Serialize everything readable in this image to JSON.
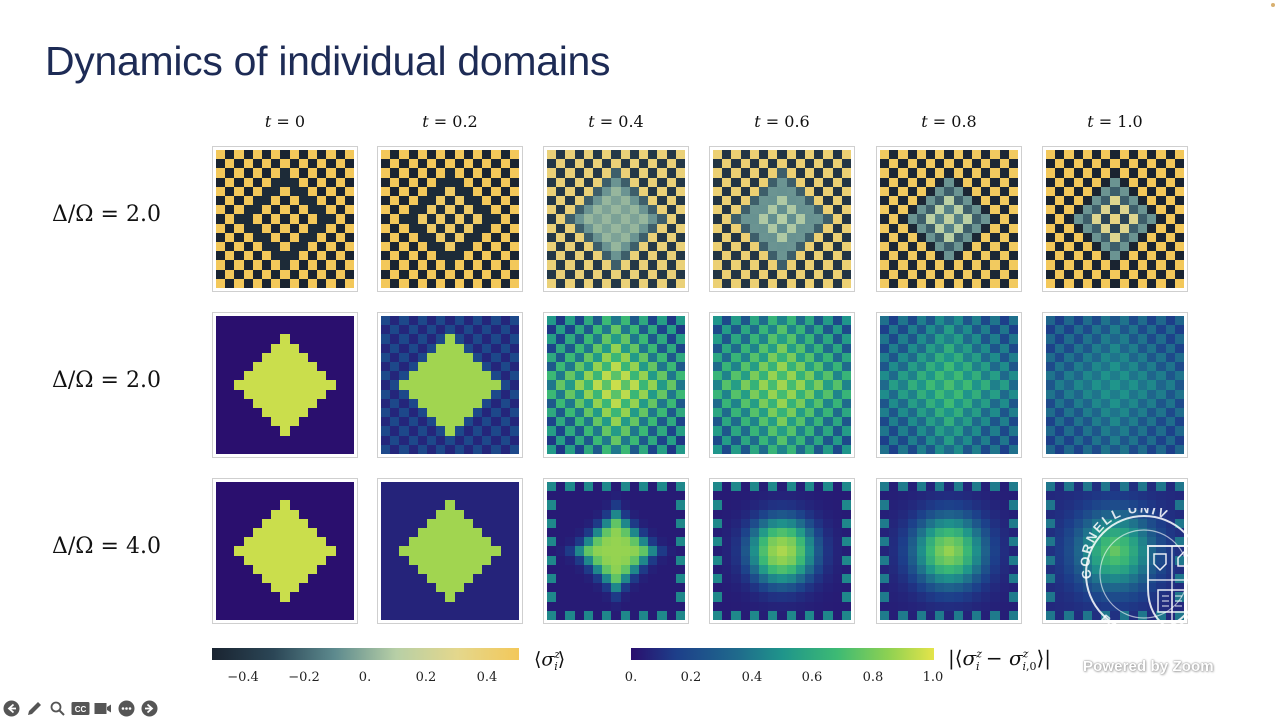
{
  "slide": {
    "title": "Dynamics of individual domains"
  },
  "columns": [
    {
      "label_var": "t",
      "label_value": "0"
    },
    {
      "label_var": "t",
      "label_value": "0.2"
    },
    {
      "label_var": "t",
      "label_value": "0.4"
    },
    {
      "label_var": "t",
      "label_value": "0.6"
    },
    {
      "label_var": "t",
      "label_value": "0.8"
    },
    {
      "label_var": "t",
      "label_value": "1.0"
    }
  ],
  "rows": [
    {
      "label": "Δ/Ω = 2.0",
      "colormap": "cividis-like",
      "quantity": "⟨σ_i^z⟩"
    },
    {
      "label": "Δ/Ω = 2.0",
      "colormap": "viridis",
      "quantity": "|⟨σ_i^z − σ_i,0^z⟩|"
    },
    {
      "label": "Δ/Ω = 4.0",
      "colormap": "viridis",
      "quantity": "|⟨σ_i^z − σ_i,0^z⟩|"
    }
  ],
  "colorbars": [
    {
      "name": "sigma-z",
      "label": "⟨σ_i^z⟩",
      "ticks": [
        "−0.4",
        "−0.2",
        "0.",
        "0.2",
        "0.4"
      ],
      "range": [
        -0.5,
        0.5
      ],
      "colors": [
        "#1a2431",
        "#2b4656",
        "#5d8a8e",
        "#b7cfa6",
        "#e4d78c",
        "#f3c85a"
      ]
    },
    {
      "name": "sigma-z-diff",
      "label": "|⟨σ_i^z − σ_i,0^z⟩|",
      "ticks": [
        "0.",
        "0.2",
        "0.4",
        "0.6",
        "0.8",
        "1.0"
      ],
      "range": [
        0,
        1
      ],
      "colors": [
        "#2a0f6e",
        "#1d3f8a",
        "#1f6a8c",
        "#1f958b",
        "#3dba74",
        "#8ed152",
        "#e4e44a"
      ]
    }
  ],
  "chart_data": {
    "type": "heatmap",
    "title": "Dynamics of individual domains",
    "grid_size": [
      15,
      15
    ],
    "x": [
      "t = 0",
      "t = 0.2",
      "t = 0.4",
      "t = 0.6",
      "t = 0.8",
      "t = 1.0"
    ],
    "rows": [
      "Δ/Ω = 2.0 (⟨σ_i^z⟩)",
      "Δ/Ω = 2.0 (|⟨σ_i^z − σ_i,0^z⟩|)",
      "Δ/Ω = 4.0 (|⟨σ_i^z − σ_i,0^z⟩|)"
    ],
    "panels": [
      [
        {
          "checker_amp": 0.5,
          "domain_radius": 5,
          "domain_flip": 1.0,
          "blur": 0.0
        },
        {
          "checker_amp": 0.5,
          "domain_radius": 5,
          "domain_flip": 0.95,
          "blur": 0.0
        },
        {
          "checker_amp": 0.38,
          "domain_radius": 5,
          "domain_flip": 0.55,
          "blur": 0.3
        },
        {
          "checker_amp": 0.4,
          "domain_radius": 5,
          "domain_flip": 0.35,
          "blur": 0.4
        },
        {
          "checker_amp": 0.48,
          "domain_radius": 4,
          "domain_flip": 0.3,
          "blur": 0.5
        },
        {
          "checker_amp": 0.5,
          "domain_radius": 4,
          "domain_flip": 0.05,
          "blur": 0.5
        }
      ],
      [
        {
          "center": 0.95,
          "radius": 5,
          "bg_checker": 0.0,
          "bg": 0.0,
          "spread": 0.0
        },
        {
          "center": 0.87,
          "radius": 5,
          "bg_checker": 0.12,
          "bg": 0.08,
          "spread": 0.0
        },
        {
          "center": 0.85,
          "radius": 5,
          "bg_checker": 0.4,
          "bg": 0.1,
          "spread": 1.0
        },
        {
          "center": 0.72,
          "radius": 5,
          "bg_checker": 0.32,
          "bg": 0.15,
          "spread": 1.6
        },
        {
          "center": 0.55,
          "radius": 4,
          "bg_checker": 0.2,
          "bg": 0.14,
          "spread": 2.0
        },
        {
          "center": 0.35,
          "radius": 3,
          "bg_checker": 0.16,
          "bg": 0.15,
          "spread": 2.5
        }
      ],
      [
        {
          "center": 0.95,
          "radius": 5,
          "edge": 0.0,
          "bg": 0.0,
          "spread": 0.0
        },
        {
          "center": 0.87,
          "radius": 5,
          "edge": 0.02,
          "bg": 0.07,
          "spread": 0.0
        },
        {
          "center": 0.85,
          "radius": 4,
          "edge": 0.45,
          "bg": 0.04,
          "spread": 1.2
        },
        {
          "center": 0.92,
          "radius": 3,
          "edge": 0.45,
          "bg": 0.04,
          "spread": 2.0
        },
        {
          "center": 0.9,
          "radius": 3,
          "edge": 0.4,
          "bg": 0.05,
          "spread": 2.5
        },
        {
          "center": 0.82,
          "radius": 3,
          "edge": 0.38,
          "bg": 0.08,
          "spread": 3.0
        }
      ]
    ],
    "colorbar_ranges": {
      "sigma_z": [
        -0.5,
        0.5
      ],
      "sigma_z_diff": [
        0,
        1
      ]
    }
  },
  "overlay": {
    "watermark": "Powered by Zoom",
    "seal_text": "CORNELL UNIVERSITY FOUNDED",
    "toolbar": [
      {
        "name": "previous",
        "icon": "arrow-left-circle-icon"
      },
      {
        "name": "annotate",
        "icon": "pencil-icon"
      },
      {
        "name": "zoom",
        "icon": "magnifier-icon"
      },
      {
        "name": "captions",
        "icon": "cc-icon"
      },
      {
        "name": "video",
        "icon": "video-camera-icon"
      },
      {
        "name": "more",
        "icon": "more-dots-icon"
      },
      {
        "name": "next",
        "icon": "arrow-right-circle-icon"
      }
    ]
  }
}
